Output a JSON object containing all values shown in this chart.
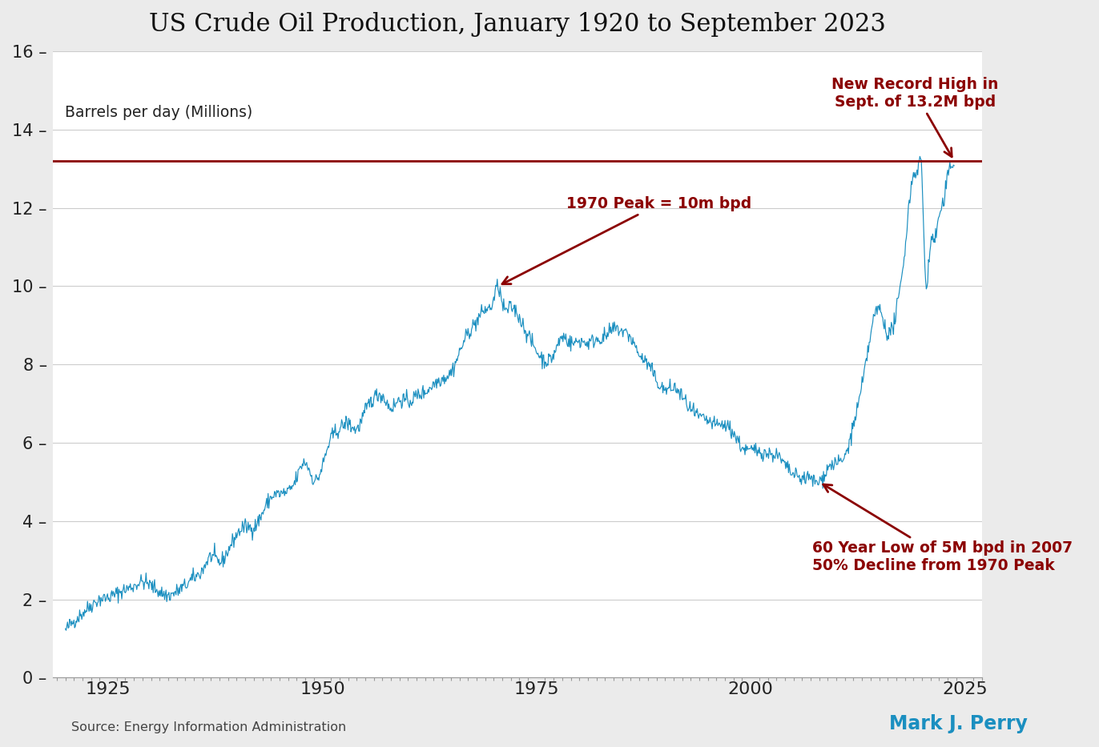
{
  "title": "US Crude Oil Production, January 1920 to September 2023",
  "ylabel": "Barrels per day (Millions)",
  "source_text": "Source: Energy Information Administration",
  "author_text": "Mark J. Perry",
  "author_color": "#1b8fc0",
  "line_color": "#1b8fc0",
  "record_line_color": "#8b0000",
  "record_line_value": 13.2,
  "annotation_color": "#8b0000",
  "ylim": [
    0,
    16
  ],
  "yticks": [
    0,
    2,
    4,
    6,
    8,
    10,
    12,
    14,
    16
  ],
  "xlim": [
    1918.5,
    2027
  ],
  "bg_color": "#ebebeb",
  "plot_bg_color": "#ffffff",
  "grid_color": "#cccccc",
  "xtick_positions": [
    1925,
    1950,
    1975,
    2000,
    2025
  ],
  "waypoints": [
    [
      1920.0,
      1.2
    ],
    [
      1921.0,
      1.45
    ],
    [
      1922.0,
      1.65
    ],
    [
      1923.0,
      1.85
    ],
    [
      1924.0,
      2.0
    ],
    [
      1925.0,
      2.05
    ],
    [
      1926.0,
      2.15
    ],
    [
      1927.0,
      2.25
    ],
    [
      1928.0,
      2.35
    ],
    [
      1929.0,
      2.45
    ],
    [
      1930.0,
      2.35
    ],
    [
      1931.0,
      2.2
    ],
    [
      1932.0,
      2.1
    ],
    [
      1933.0,
      2.2
    ],
    [
      1934.0,
      2.35
    ],
    [
      1935.0,
      2.55
    ],
    [
      1936.0,
      2.75
    ],
    [
      1937.0,
      3.1
    ],
    [
      1938.0,
      2.95
    ],
    [
      1939.0,
      3.25
    ],
    [
      1940.0,
      3.65
    ],
    [
      1941.0,
      3.85
    ],
    [
      1942.0,
      3.85
    ],
    [
      1943.0,
      4.2
    ],
    [
      1944.0,
      4.6
    ],
    [
      1945.0,
      4.7
    ],
    [
      1946.0,
      4.75
    ],
    [
      1947.0,
      5.1
    ],
    [
      1948.0,
      5.5
    ],
    [
      1949.0,
      5.05
    ],
    [
      1950.0,
      5.4
    ],
    [
      1951.0,
      6.1
    ],
    [
      1952.0,
      6.35
    ],
    [
      1953.0,
      6.5
    ],
    [
      1954.0,
      6.35
    ],
    [
      1955.0,
      6.8
    ],
    [
      1956.0,
      7.15
    ],
    [
      1957.0,
      7.2
    ],
    [
      1958.0,
      6.9
    ],
    [
      1959.0,
      7.1
    ],
    [
      1960.0,
      7.05
    ],
    [
      1961.0,
      7.2
    ],
    [
      1962.0,
      7.3
    ],
    [
      1963.0,
      7.5
    ],
    [
      1964.0,
      7.65
    ],
    [
      1965.0,
      7.8
    ],
    [
      1966.0,
      8.3
    ],
    [
      1967.0,
      8.8
    ],
    [
      1968.0,
      9.1
    ],
    [
      1969.0,
      9.4
    ],
    [
      1970.0,
      9.65
    ],
    [
      1970.5,
      10.0
    ],
    [
      1971.0,
      9.55
    ],
    [
      1972.0,
      9.45
    ],
    [
      1973.0,
      9.2
    ],
    [
      1974.0,
      8.75
    ],
    [
      1975.0,
      8.35
    ],
    [
      1976.0,
      8.1
    ],
    [
      1977.0,
      8.25
    ],
    [
      1978.0,
      8.7
    ],
    [
      1979.0,
      8.55
    ],
    [
      1980.0,
      8.6
    ],
    [
      1981.0,
      8.55
    ],
    [
      1982.0,
      8.65
    ],
    [
      1983.0,
      8.7
    ],
    [
      1984.0,
      8.9
    ],
    [
      1985.0,
      8.85
    ],
    [
      1986.0,
      8.68
    ],
    [
      1987.0,
      8.25
    ],
    [
      1988.0,
      8.0
    ],
    [
      1989.0,
      7.6
    ],
    [
      1990.0,
      7.35
    ],
    [
      1991.0,
      7.4
    ],
    [
      1992.0,
      7.17
    ],
    [
      1993.0,
      6.85
    ],
    [
      1994.0,
      6.65
    ],
    [
      1995.0,
      6.55
    ],
    [
      1996.0,
      6.45
    ],
    [
      1997.0,
      6.45
    ],
    [
      1998.0,
      6.25
    ],
    [
      1999.0,
      5.88
    ],
    [
      2000.0,
      5.8
    ],
    [
      2001.0,
      5.8
    ],
    [
      2002.0,
      5.72
    ],
    [
      2003.0,
      5.68
    ],
    [
      2004.0,
      5.42
    ],
    [
      2005.0,
      5.18
    ],
    [
      2006.0,
      5.1
    ],
    [
      2007.0,
      5.08
    ],
    [
      2008.0,
      5.0
    ],
    [
      2009.0,
      5.35
    ],
    [
      2010.0,
      5.48
    ],
    [
      2011.0,
      5.65
    ],
    [
      2012.0,
      6.45
    ],
    [
      2013.0,
      7.45
    ],
    [
      2014.0,
      8.75
    ],
    [
      2015.0,
      9.42
    ],
    [
      2016.0,
      8.8
    ],
    [
      2017.0,
      9.35
    ],
    [
      2018.0,
      10.95
    ],
    [
      2019.0,
      12.85
    ],
    [
      2019.5,
      13.0
    ],
    [
      2020.0,
      12.75
    ],
    [
      2020.25,
      11.0
    ],
    [
      2020.5,
      10.0
    ],
    [
      2020.75,
      10.5
    ],
    [
      2021.0,
      11.1
    ],
    [
      2021.5,
      11.2
    ],
    [
      2022.0,
      11.8
    ],
    [
      2022.5,
      12.1
    ],
    [
      2023.0,
      12.8
    ],
    [
      2023.5,
      13.1
    ],
    [
      2023.75,
      13.2
    ]
  ],
  "noise_std": 0.1,
  "noise_seed": 42
}
